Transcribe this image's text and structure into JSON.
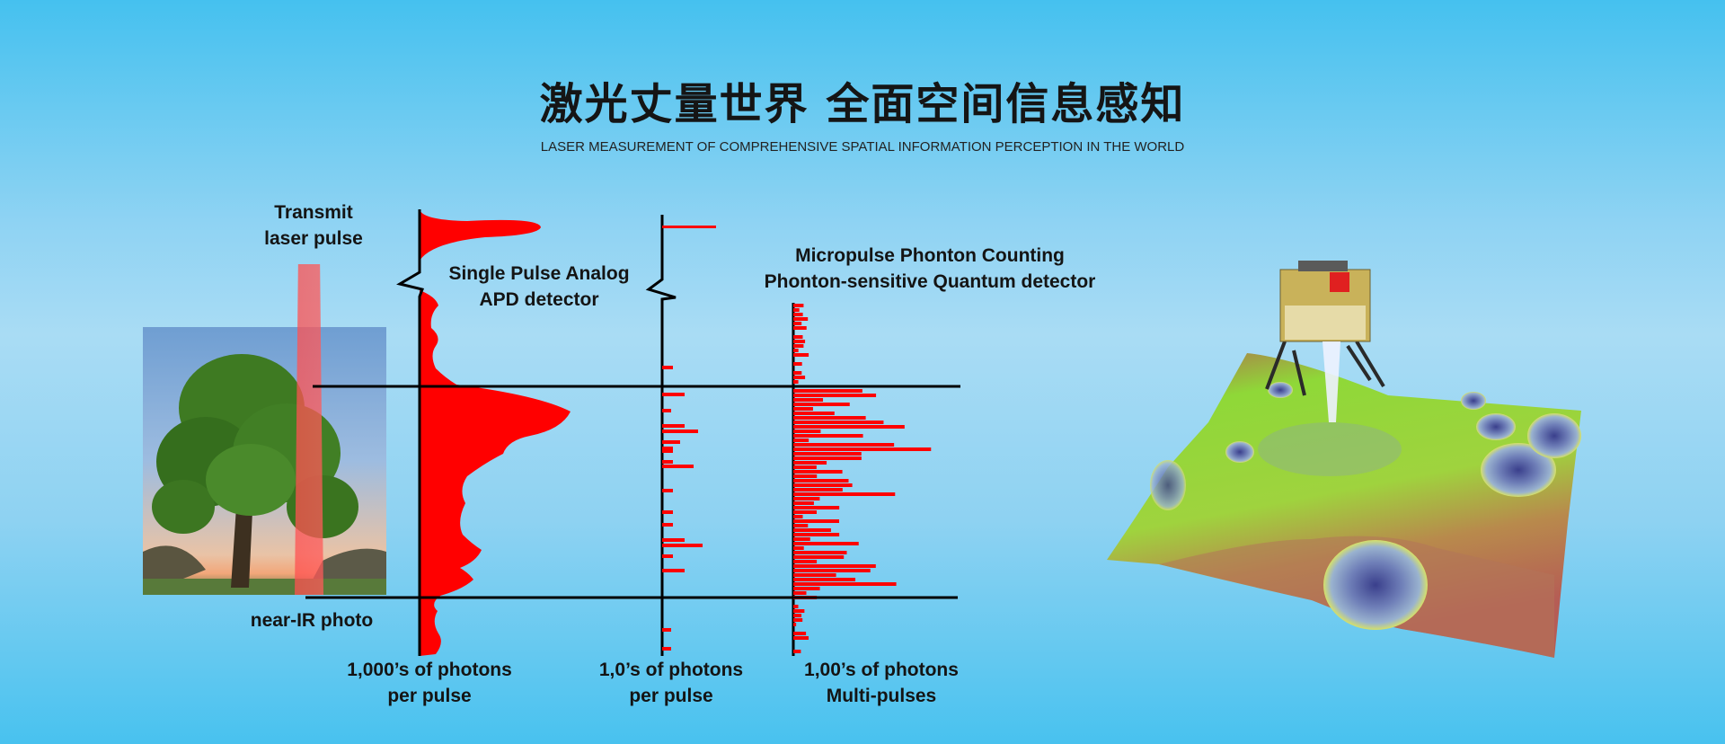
{
  "header": {
    "title": "激光丈量世界 全面空间信息感知",
    "subtitle": "LASER MEASUREMENT OF COMPREHENSIVE SPATIAL INFORMATION PERCEPTION IN THE WORLD"
  },
  "diagram": {
    "transmit_label_1": "Transmit",
    "transmit_label_2": "laser pulse",
    "photo_label": "near-IR photo",
    "analog_label_1": "Single Pulse Analog",
    "analog_label_2": "APD detector",
    "quantum_label_1": "Micropulse Phonton Counting",
    "quantum_label_2": "Phonton-sensitive Quantum detector",
    "col1_label_1": "1,000’s of photons",
    "col1_label_2": "per pulse",
    "col2_label_1": "1,0’s of photons",
    "col2_label_2": "per pulse",
    "col3_label_1": "1,00’s of photons",
    "col3_label_2": "Multi-pulses"
  },
  "colors": {
    "signal": "#ff0000",
    "axis": "#000000",
    "beam": "#ff4d4d",
    "text": "#141414"
  }
}
